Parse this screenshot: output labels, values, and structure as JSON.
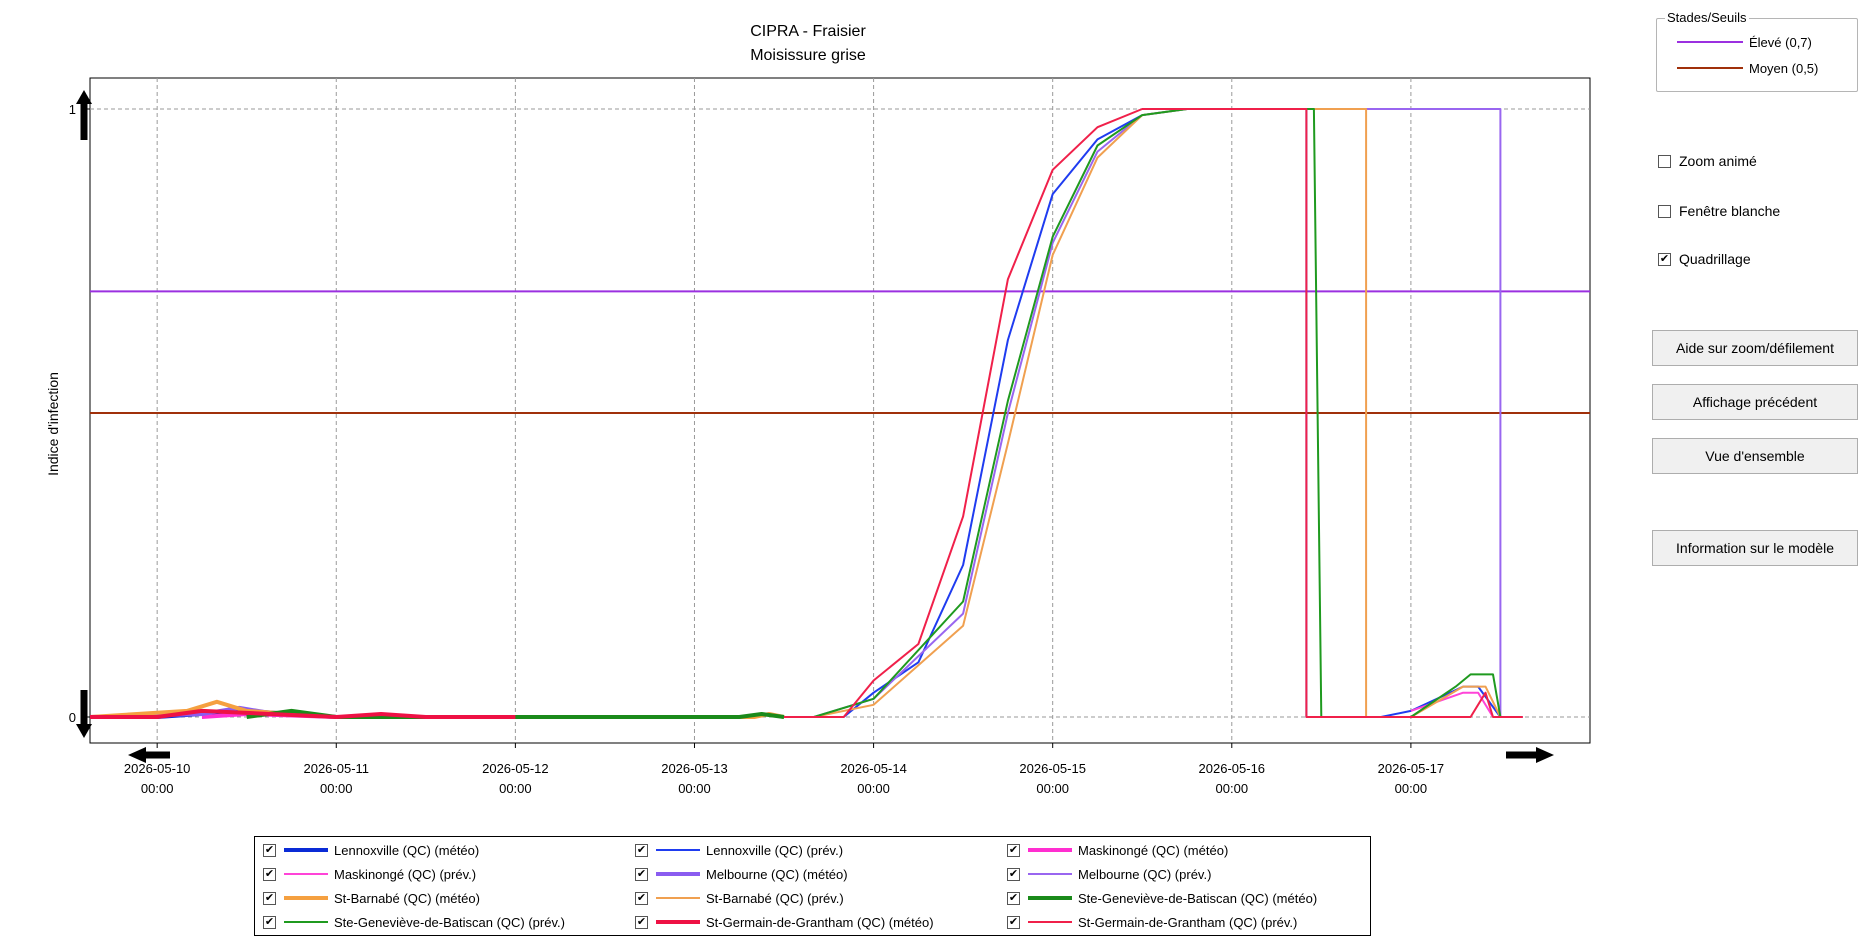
{
  "chart_data": {
    "type": "line",
    "title": "CIPRA - Fraisier",
    "subtitle": "Moisissure grise",
    "ylabel": "Indice d'infection",
    "xlabel": "",
    "ylim": [
      0,
      1
    ],
    "xlim": [
      "2026-05-09 15:00",
      "2026-05-18 00:00"
    ],
    "y_ticks": [
      "0",
      "1"
    ],
    "x_ticks": [
      {
        "date": "2026-05-10",
        "time": "00:00"
      },
      {
        "date": "2026-05-11",
        "time": "00:00"
      },
      {
        "date": "2026-05-12",
        "time": "00:00"
      },
      {
        "date": "2026-05-13",
        "time": "00:00"
      },
      {
        "date": "2026-05-14",
        "time": "00:00"
      },
      {
        "date": "2026-05-15",
        "time": "00:00"
      },
      {
        "date": "2026-05-16",
        "time": "00:00"
      },
      {
        "date": "2026-05-17",
        "time": "00:00"
      }
    ],
    "grid": true,
    "thresholds": [
      {
        "name": "Élevé (0,7)",
        "value": 0.7,
        "color": "#9b30e0"
      },
      {
        "name": "Moyen (0,5)",
        "value": 0.5,
        "color": "#a0300a"
      }
    ],
    "series": [
      {
        "name": "Lennoxville (QC) (météo)",
        "color": "#0a2bd6",
        "width": 4,
        "points": [
          [
            "2026-05-09 15:00",
            0
          ],
          [
            "2026-05-10 00:00",
            0
          ],
          [
            "2026-05-10 12:00",
            0.01
          ],
          [
            "2026-05-11 00:00",
            0
          ],
          [
            "2026-05-11 12:00",
            0
          ]
        ]
      },
      {
        "name": "Lennoxville (QC) (prév.)",
        "color": "#1f3cf0",
        "width": 2,
        "points": [
          [
            "2026-05-13 12:00",
            0
          ],
          [
            "2026-05-13 20:00",
            0
          ],
          [
            "2026-05-14 00:00",
            0.04
          ],
          [
            "2026-05-14 06:00",
            0.09
          ],
          [
            "2026-05-14 12:00",
            0.25
          ],
          [
            "2026-05-14 18:00",
            0.62
          ],
          [
            "2026-05-15 00:00",
            0.86
          ],
          [
            "2026-05-15 06:00",
            0.95
          ],
          [
            "2026-05-15 12:00",
            0.99
          ],
          [
            "2026-05-15 18:00",
            1
          ],
          [
            "2026-05-16 10:00",
            1
          ],
          [
            "2026-05-16 10:00",
            0
          ],
          [
            "2026-05-16 20:00",
            0
          ],
          [
            "2026-05-17 00:00",
            0.01
          ],
          [
            "2026-05-17 07:00",
            0.05
          ],
          [
            "2026-05-17 09:00",
            0.05
          ],
          [
            "2026-05-17 12:00",
            0
          ]
        ]
      },
      {
        "name": "Maskinongé (QC) (météo)",
        "color": "#ff2ed0",
        "width": 4,
        "points": [
          [
            "2026-05-10 06:00",
            0
          ],
          [
            "2026-05-10 12:00",
            0.005
          ],
          [
            "2026-05-11 00:00",
            0
          ]
        ]
      },
      {
        "name": "Maskinongé (QC) (prév.)",
        "color": "#ff44d8",
        "width": 2,
        "points": [
          [
            "2026-05-17 00:00",
            0.01
          ],
          [
            "2026-05-17 07:00",
            0.04
          ],
          [
            "2026-05-17 09:00",
            0.04
          ],
          [
            "2026-05-17 11:00",
            0
          ]
        ]
      },
      {
        "name": "Melbourne (QC) (météo)",
        "color": "#8a5cf0",
        "width": 4,
        "points": [
          [
            "2026-05-09 15:00",
            0
          ],
          [
            "2026-05-10 06:00",
            0.005
          ],
          [
            "2026-05-10 11:00",
            0.015
          ],
          [
            "2026-05-10 16:00",
            0.005
          ],
          [
            "2026-05-11 00:00",
            0
          ],
          [
            "2026-05-12 00:00",
            0
          ]
        ]
      },
      {
        "name": "Melbourne (QC) (prév.)",
        "color": "#9966f0",
        "width": 2,
        "points": [
          [
            "2026-05-13 16:00",
            0
          ],
          [
            "2026-05-14 00:00",
            0.03
          ],
          [
            "2026-05-14 12:00",
            0.17
          ],
          [
            "2026-05-14 18:00",
            0.5
          ],
          [
            "2026-05-15 00:00",
            0.78
          ],
          [
            "2026-05-15 06:00",
            0.93
          ],
          [
            "2026-05-15 12:00",
            0.99
          ],
          [
            "2026-05-15 18:00",
            1
          ],
          [
            "2026-05-17 12:00",
            1
          ],
          [
            "2026-05-17 12:00",
            0
          ],
          [
            "2026-05-17 15:00",
            0
          ]
        ]
      },
      {
        "name": "St-Barnabé (QC) (météo)",
        "color": "#f5a040",
        "width": 4,
        "points": [
          [
            "2026-05-09 15:00",
            0
          ],
          [
            "2026-05-10 04:00",
            0.01
          ],
          [
            "2026-05-10 08:00",
            0.025
          ],
          [
            "2026-05-10 12:00",
            0.01
          ],
          [
            "2026-05-11 00:00",
            0
          ],
          [
            "2026-05-13 08:00",
            0
          ],
          [
            "2026-05-13 10:00",
            0.005
          ],
          [
            "2026-05-13 12:00",
            0
          ]
        ]
      },
      {
        "name": "St-Barnabé (QC) (prév.)",
        "color": "#f0a050",
        "width": 2,
        "points": [
          [
            "2026-05-13 16:00",
            0
          ],
          [
            "2026-05-14 00:00",
            0.02
          ],
          [
            "2026-05-14 12:00",
            0.15
          ],
          [
            "2026-05-14 18:00",
            0.45
          ],
          [
            "2026-05-15 00:00",
            0.76
          ],
          [
            "2026-05-15 06:00",
            0.92
          ],
          [
            "2026-05-15 12:00",
            0.99
          ],
          [
            "2026-05-15 18:00",
            1
          ],
          [
            "2026-05-16 18:00",
            1
          ],
          [
            "2026-05-16 18:00",
            0
          ],
          [
            "2026-05-17 00:00",
            0
          ],
          [
            "2026-05-17 07:00",
            0.05
          ],
          [
            "2026-05-17 10:00",
            0.05
          ],
          [
            "2026-05-17 12:00",
            0
          ]
        ]
      },
      {
        "name": "Ste-Geneviève-de-Batiscan (QC) (météo)",
        "color": "#1a8a1a",
        "width": 4,
        "points": [
          [
            "2026-05-10 12:00",
            0
          ],
          [
            "2026-05-10 18:00",
            0.01
          ],
          [
            "2026-05-11 00:00",
            0
          ],
          [
            "2026-05-13 06:00",
            0
          ],
          [
            "2026-05-13 09:00",
            0.005
          ],
          [
            "2026-05-13 12:00",
            0
          ]
        ]
      },
      {
        "name": "Ste-Geneviève-de-Batiscan (QC) (prév.)",
        "color": "#1f9a1f",
        "width": 2,
        "points": [
          [
            "2026-05-13 16:00",
            0
          ],
          [
            "2026-05-14 00:00",
            0.03
          ],
          [
            "2026-05-14 12:00",
            0.19
          ],
          [
            "2026-05-14 18:00",
            0.52
          ],
          [
            "2026-05-15 00:00",
            0.79
          ],
          [
            "2026-05-15 06:00",
            0.94
          ],
          [
            "2026-05-15 12:00",
            0.99
          ],
          [
            "2026-05-15 18:00",
            1
          ],
          [
            "2026-05-16 11:00",
            1
          ],
          [
            "2026-05-16 12:00",
            0
          ],
          [
            "2026-05-17 00:00",
            0
          ],
          [
            "2026-05-17 06:00",
            0.05
          ],
          [
            "2026-05-17 08:00",
            0.07
          ],
          [
            "2026-05-17 11:00",
            0.07
          ],
          [
            "2026-05-17 12:00",
            0
          ]
        ]
      },
      {
        "name": "St-Germain-de-Grantham (QC) (météo)",
        "color": "#ee1144",
        "width": 4,
        "points": [
          [
            "2026-05-09 15:00",
            0
          ],
          [
            "2026-05-10 00:00",
            0
          ],
          [
            "2026-05-10 06:00",
            0.01
          ],
          [
            "2026-05-11 00:00",
            0
          ],
          [
            "2026-05-11 06:00",
            0.005
          ],
          [
            "2026-05-11 12:00",
            0
          ],
          [
            "2026-05-12 00:00",
            0
          ]
        ]
      },
      {
        "name": "St-Germain-de-Grantham (QC) (prév.)",
        "color": "#f0204a",
        "width": 2,
        "points": [
          [
            "2026-05-13 12:00",
            0
          ],
          [
            "2026-05-13 20:00",
            0
          ],
          [
            "2026-05-14 00:00",
            0.06
          ],
          [
            "2026-05-14 06:00",
            0.12
          ],
          [
            "2026-05-14 12:00",
            0.33
          ],
          [
            "2026-05-14 18:00",
            0.72
          ],
          [
            "2026-05-15 00:00",
            0.9
          ],
          [
            "2026-05-15 06:00",
            0.97
          ],
          [
            "2026-05-15 12:00",
            1
          ],
          [
            "2026-05-16 10:00",
            1
          ],
          [
            "2026-05-16 10:00",
            0
          ],
          [
            "2026-05-17 08:00",
            0
          ],
          [
            "2026-05-17 10:00",
            0.04
          ],
          [
            "2026-05-17 11:00",
            0
          ],
          [
            "2026-05-17 15:00",
            0
          ]
        ]
      }
    ]
  },
  "legend": {
    "items": [
      {
        "label": "Lennoxville (QC) (météo)",
        "checked": "✔",
        "color": "#0a2bd6",
        "width": 4
      },
      {
        "label": "Lennoxville (QC) (prév.)",
        "checked": "✔",
        "color": "#1f3cf0",
        "width": 2
      },
      {
        "label": "Maskinongé (QC) (météo)",
        "checked": "✔",
        "color": "#ff2ed0",
        "width": 4
      },
      {
        "label": "Maskinongé (QC) (prév.)",
        "checked": "✔",
        "color": "#ff44d8",
        "width": 2
      },
      {
        "label": "Melbourne (QC) (météo)",
        "checked": "✔",
        "color": "#8a5cf0",
        "width": 4
      },
      {
        "label": "Melbourne (QC) (prév.)",
        "checked": "✔",
        "color": "#9966f0",
        "width": 2
      },
      {
        "label": "St-Barnabé (QC) (météo)",
        "checked": "✔",
        "color": "#f5a040",
        "width": 4
      },
      {
        "label": "St-Barnabé (QC) (prév.)",
        "checked": "✔",
        "color": "#f0a050",
        "width": 2
      },
      {
        "label": "Ste-Geneviève-de-Batiscan (QC) (météo)",
        "checked": "✔",
        "color": "#1a8a1a",
        "width": 4
      },
      {
        "label": "Ste-Geneviève-de-Batiscan (QC) (prév.)",
        "checked": "✔",
        "color": "#1f9a1f",
        "width": 2
      },
      {
        "label": "St-Germain-de-Grantham (QC) (météo)",
        "checked": "✔",
        "color": "#ee1144",
        "width": 4
      },
      {
        "label": "St-Germain-de-Grantham (QC) (prév.)",
        "checked": "✔",
        "color": "#f0204a",
        "width": 2
      }
    ]
  },
  "stades": {
    "title": "Stades/Seuils",
    "items": [
      {
        "label": "Élevé (0,7)",
        "color": "#9b30e0"
      },
      {
        "label": "Moyen (0,5)",
        "color": "#a0300a"
      }
    ]
  },
  "options": {
    "zoom_anime": {
      "label": "Zoom animé",
      "mark": ""
    },
    "fenetre_blanche": {
      "label": "Fenêtre blanche",
      "mark": ""
    },
    "quadrillage": {
      "label": "Quadrillage",
      "mark": "✔"
    }
  },
  "buttons": {
    "aide": "Aide sur zoom/défilement",
    "precedent": "Affichage précédent",
    "ensemble": "Vue d'ensemble",
    "information": "Information sur le modèle"
  },
  "nav_icons": [
    "scroll-up-arrow-icon",
    "scroll-down-arrow-icon",
    "scroll-left-arrow-icon",
    "scroll-right-arrow-icon"
  ]
}
